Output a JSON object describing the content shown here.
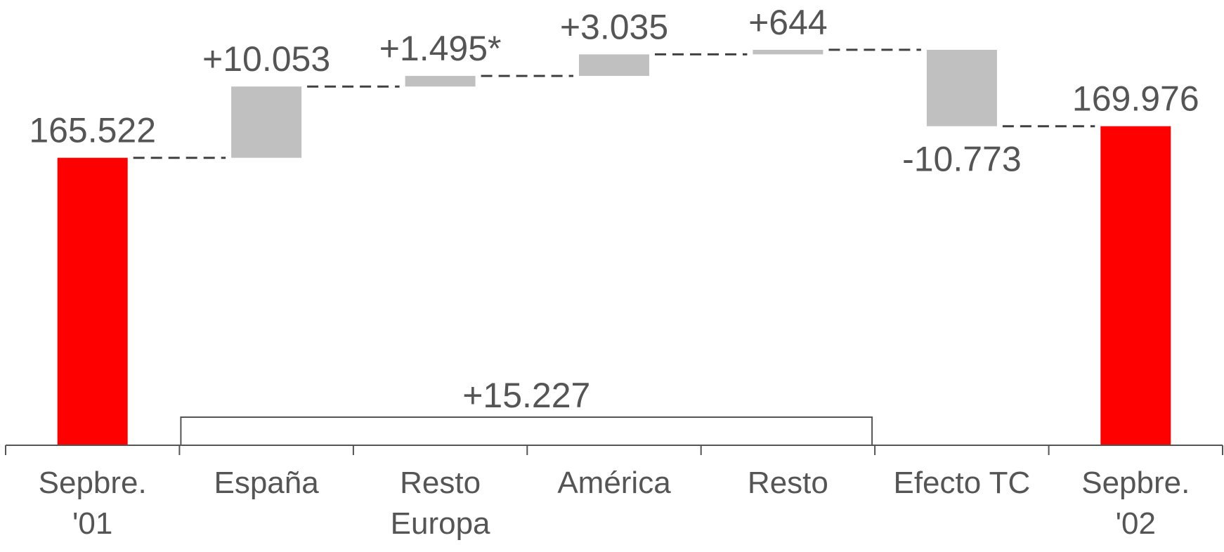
{
  "chart_data": {
    "type": "waterfall",
    "title": "",
    "xlabel": "",
    "ylabel": "",
    "categories": [
      [
        "Sepbre.",
        "'01"
      ],
      [
        "España"
      ],
      [
        "Resto",
        "Europa"
      ],
      [
        "América"
      ],
      [
        "Resto"
      ],
      [
        "Efecto TC"
      ],
      [
        "Sepbre.",
        "'02"
      ]
    ],
    "steps": [
      {
        "kind": "total",
        "value": 165522,
        "label": "165.522"
      },
      {
        "kind": "delta",
        "value": 10053,
        "label": "+10.053"
      },
      {
        "kind": "delta",
        "value": 1495,
        "label": "+1.495*"
      },
      {
        "kind": "delta",
        "value": 3035,
        "label": "+3.035"
      },
      {
        "kind": "delta",
        "value": 644,
        "label": "+644"
      },
      {
        "kind": "delta",
        "value": -10773,
        "label": "-10.773"
      },
      {
        "kind": "total",
        "value": 169976,
        "label": "169.976"
      }
    ],
    "subtotal_bracket": {
      "from_category": 1,
      "to_category": 4,
      "value": 15227,
      "label": "+15.227"
    },
    "ylim": [
      125000,
      185000
    ],
    "colors": {
      "total": "#ff0000",
      "delta": "#c0c0c0",
      "connector": "#404040",
      "axis": "#555555",
      "text": "#555555"
    },
    "grid": false,
    "legend": "none"
  }
}
